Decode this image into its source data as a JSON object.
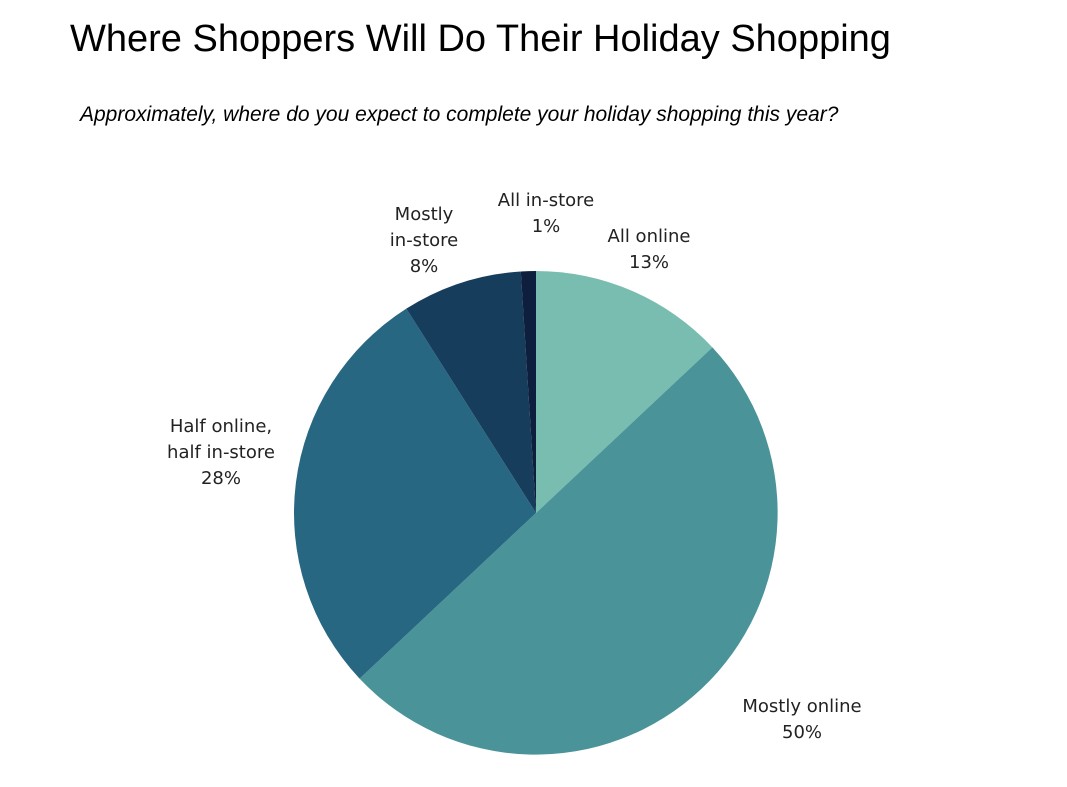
{
  "title": "Where Shoppers Will Do Their Holiday Shopping",
  "subtitle": "Approximately, where do you expect to complete your holiday shopping this year?",
  "chart_data": {
    "type": "pie",
    "start": "12 o'clock",
    "direction": "clockwise",
    "slices": [
      {
        "label_lines": [
          "All online"
        ],
        "value": 13,
        "value_label": "13%",
        "color": "#78bdb0"
      },
      {
        "label_lines": [
          "Mostly online"
        ],
        "value": 50,
        "value_label": "50%",
        "color": "#4a9499"
      },
      {
        "label_lines": [
          "Half online,",
          "half in-store"
        ],
        "value": 28,
        "value_label": "28%",
        "color": "#276781"
      },
      {
        "label_lines": [
          "Mostly",
          "in-store"
        ],
        "value": 8,
        "value_label": "8%",
        "color": "#173d5d"
      },
      {
        "label_lines": [
          "All in-store"
        ],
        "value": 1,
        "value_label": "1%",
        "color": "#0e1f3e"
      }
    ]
  }
}
